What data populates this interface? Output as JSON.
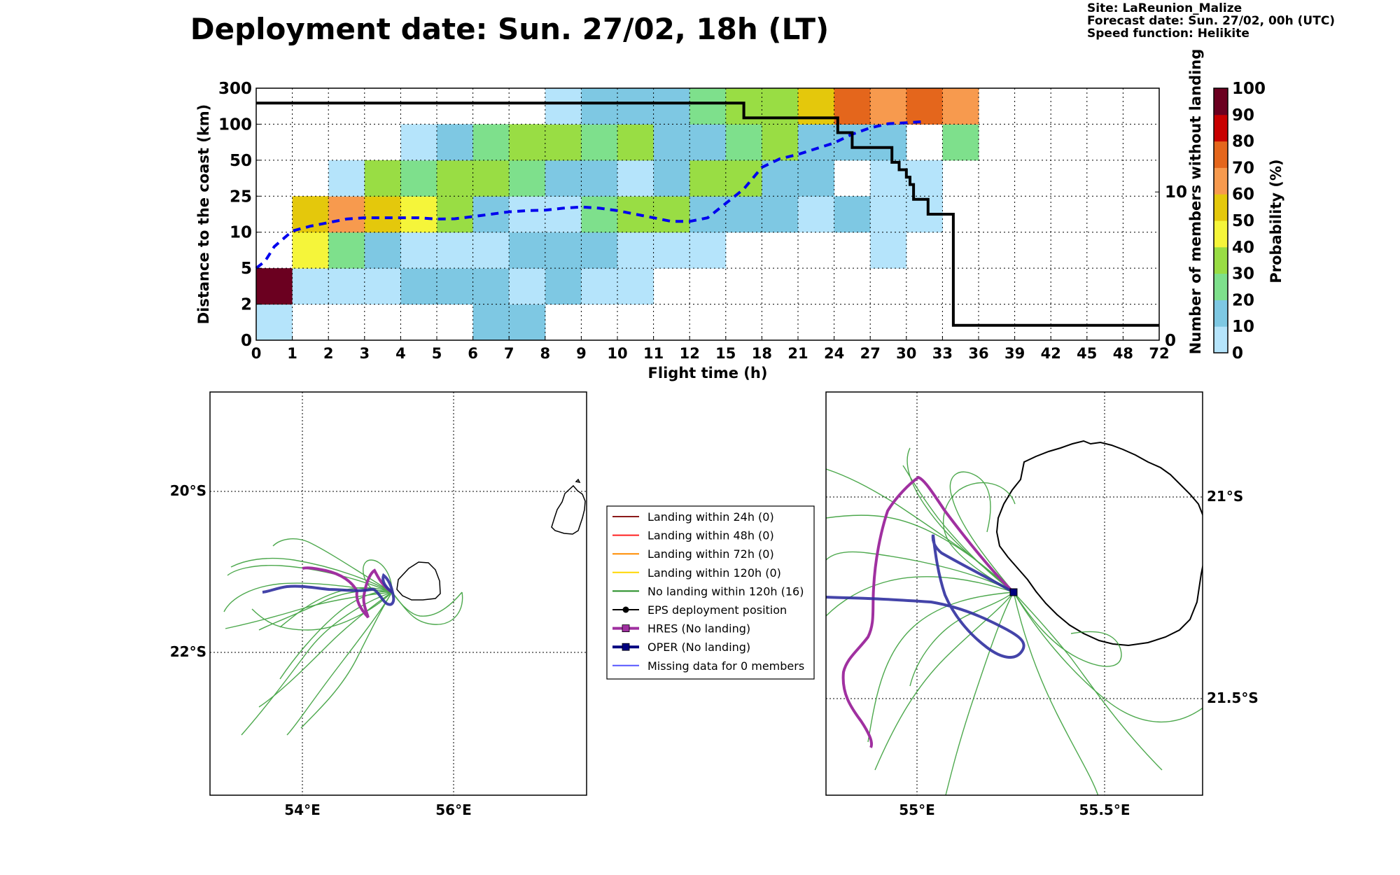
{
  "header": {
    "title": "Deployment date: Sun. 27/02, 18h (LT)",
    "info": [
      "Site: LaReunion_Malize",
      "Forecast date: Sun. 27/02, 00h (UTC)",
      "Speed function: Helikite"
    ]
  },
  "chart_data": [
    {
      "type": "heatmap",
      "xlabel": "Flight time (h)",
      "ylabel": "Distance to the coast (km)",
      "y2label": "Number of members without landing",
      "colorbar_label": "Probability (%)",
      "x_ticks": [
        "0",
        "1",
        "2",
        "3",
        "4",
        "5",
        "6",
        "7",
        "8",
        "9",
        "10",
        "11",
        "12",
        "15",
        "18",
        "21",
        "24",
        "27",
        "30",
        "33",
        "36",
        "39",
        "42",
        "45",
        "48",
        "72"
      ],
      "y_ticks": [
        "0",
        "2",
        "5",
        "10",
        "25",
        "50",
        "100",
        "300"
      ],
      "y2_ticks": [
        "0",
        "10"
      ],
      "y2_range": [
        0,
        17
      ],
      "colorbar_ticks": [
        "0",
        "10",
        "20",
        "30",
        "40",
        "50",
        "60",
        "70",
        "80",
        "90",
        "100"
      ],
      "colorbar_colors": [
        "#b5e4fb",
        "#7ec8e3",
        "#7ee08c",
        "#99dd44",
        "#f5f53a",
        "#e4c80c",
        "#f79a4e",
        "#e4661c",
        "#c80000",
        "#a00000",
        "#6b0020"
      ],
      "grid": true,
      "cells": [
        [
          0,
          0,
          0
        ],
        [
          0,
          1,
          100
        ],
        [
          1,
          1,
          0
        ],
        [
          1,
          2,
          40
        ],
        [
          1,
          3,
          50
        ],
        [
          2,
          1,
          0
        ],
        [
          2,
          2,
          20
        ],
        [
          2,
          3,
          60
        ],
        [
          2,
          4,
          0
        ],
        [
          3,
          1,
          0
        ],
        [
          3,
          2,
          10
        ],
        [
          3,
          3,
          50
        ],
        [
          3,
          4,
          30
        ],
        [
          4,
          1,
          10
        ],
        [
          4,
          2,
          0
        ],
        [
          4,
          3,
          40
        ],
        [
          4,
          4,
          20
        ],
        [
          4,
          5,
          0
        ],
        [
          5,
          1,
          10
        ],
        [
          5,
          2,
          0
        ],
        [
          5,
          3,
          30
        ],
        [
          5,
          4,
          30
        ],
        [
          5,
          5,
          10
        ],
        [
          6,
          0,
          10
        ],
        [
          6,
          1,
          10
        ],
        [
          6,
          2,
          0
        ],
        [
          6,
          3,
          10
        ],
        [
          6,
          4,
          30
        ],
        [
          6,
          5,
          20
        ],
        [
          7,
          0,
          10
        ],
        [
          7,
          1,
          0
        ],
        [
          7,
          2,
          10
        ],
        [
          7,
          3,
          0
        ],
        [
          7,
          4,
          20
        ],
        [
          7,
          5,
          30
        ],
        [
          8,
          1,
          10
        ],
        [
          8,
          2,
          10
        ],
        [
          8,
          3,
          0
        ],
        [
          8,
          4,
          10
        ],
        [
          8,
          5,
          30
        ],
        [
          8,
          6,
          0
        ],
        [
          9,
          1,
          0
        ],
        [
          9,
          2,
          10
        ],
        [
          9,
          3,
          20
        ],
        [
          9,
          4,
          10
        ],
        [
          9,
          5,
          20
        ],
        [
          9,
          6,
          10
        ],
        [
          10,
          1,
          0
        ],
        [
          10,
          2,
          0
        ],
        [
          10,
          3,
          30
        ],
        [
          10,
          4,
          0
        ],
        [
          10,
          5,
          30
        ],
        [
          10,
          6,
          10
        ],
        [
          11,
          2,
          0
        ],
        [
          11,
          3,
          30
        ],
        [
          11,
          4,
          10
        ],
        [
          11,
          5,
          10
        ],
        [
          11,
          6,
          10
        ],
        [
          12,
          2,
          0
        ],
        [
          12,
          3,
          10
        ],
        [
          12,
          4,
          30
        ],
        [
          12,
          5,
          10
        ],
        [
          12,
          6,
          20
        ],
        [
          13,
          3,
          10
        ],
        [
          13,
          4,
          30
        ],
        [
          13,
          5,
          20
        ],
        [
          13,
          6,
          30
        ],
        [
          14,
          3,
          10
        ],
        [
          14,
          4,
          10
        ],
        [
          14,
          5,
          30
        ],
        [
          14,
          6,
          30
        ],
        [
          15,
          3,
          0
        ],
        [
          15,
          4,
          10
        ],
        [
          15,
          5,
          10
        ],
        [
          15,
          6,
          50
        ],
        [
          16,
          3,
          10
        ],
        [
          16,
          5,
          10
        ],
        [
          16,
          6,
          70
        ],
        [
          17,
          2,
          0
        ],
        [
          17,
          3,
          0
        ],
        [
          17,
          4,
          0
        ],
        [
          17,
          5,
          10
        ],
        [
          17,
          6,
          60
        ],
        [
          18,
          3,
          0
        ],
        [
          18,
          4,
          0
        ],
        [
          18,
          6,
          70
        ],
        [
          19,
          5,
          20
        ],
        [
          19,
          6,
          60
        ]
      ],
      "series": [
        {
          "type": "line",
          "style": "dashed",
          "color": "#0000ee",
          "axis": "left",
          "points": [
            [
              0,
              5
            ],
            [
              0.25,
              6
            ],
            [
              0.5,
              8
            ],
            [
              1,
              10.5
            ],
            [
              1.5,
              12.5
            ],
            [
              2,
              14
            ],
            [
              2.5,
              15.5
            ],
            [
              3,
              16
            ],
            [
              3.5,
              16
            ],
            [
              4,
              16
            ],
            [
              4.5,
              16
            ],
            [
              5,
              15.5
            ],
            [
              5.5,
              15.6
            ],
            [
              6,
              16.5
            ],
            [
              6.5,
              17.5
            ],
            [
              7,
              18.5
            ],
            [
              7.5,
              19
            ],
            [
              8,
              19.2
            ],
            [
              8.5,
              20
            ],
            [
              9,
              20.5
            ],
            [
              9.5,
              20
            ],
            [
              10,
              19
            ],
            [
              10.5,
              17.5
            ],
            [
              11,
              16
            ],
            [
              11.5,
              14.5
            ],
            [
              12,
              14.5
            ],
            [
              12.5,
              16
            ],
            [
              13,
              22
            ],
            [
              13.5,
              30
            ],
            [
              14,
              45
            ],
            [
              14.5,
              52
            ],
            [
              15,
              58
            ],
            [
              15.5,
              66
            ],
            [
              16,
              74
            ],
            [
              16.5,
              86
            ],
            [
              17,
              95
            ],
            [
              17.5,
              103
            ],
            [
              18,
              108
            ],
            [
              18.5,
              115
            ]
          ]
        },
        {
          "type": "step",
          "color": "#000000",
          "axis": "right",
          "points": [
            [
              0,
              16
            ],
            [
              13.5,
              16
            ],
            [
              13.5,
              15
            ],
            [
              16.1,
              15
            ],
            [
              16.1,
              14
            ],
            [
              16.5,
              14
            ],
            [
              16.5,
              13
            ],
            [
              17.6,
              13
            ],
            [
              17.6,
              12
            ],
            [
              17.8,
              12
            ],
            [
              17.8,
              11.5
            ],
            [
              18,
              11.5
            ],
            [
              18,
              11
            ],
            [
              18.1,
              11
            ],
            [
              18.1,
              10.5
            ],
            [
              18.2,
              10.5
            ],
            [
              18.2,
              9.5
            ],
            [
              18.6,
              9.5
            ],
            [
              18.6,
              8.5
            ],
            [
              19.3,
              8.5
            ],
            [
              19.3,
              1
            ],
            [
              25,
              1
            ]
          ]
        }
      ]
    },
    {
      "type": "map",
      "lon_ticks": [
        "54°E",
        "56°E"
      ],
      "lat_ticks": [
        "20°S",
        "22°S"
      ],
      "lon_range": [
        52.75,
        57.75
      ],
      "lat_range": [
        18.8,
        23.8
      ]
    },
    {
      "type": "map",
      "lon_ticks": [
        "55°E",
        "55.5°E"
      ],
      "lat_ticks": [
        "21°S",
        "21.5°S"
      ],
      "lon_range": [
        54.77,
        55.77
      ],
      "lat_range": [
        20.755,
        21.755
      ]
    }
  ],
  "legend": {
    "entries": [
      {
        "label": "Landing within 24h (0)",
        "color": "#8b1a1a"
      },
      {
        "label": "Landing within 48h (0)",
        "color": "#ff2020"
      },
      {
        "label": "Landing within 72h (0)",
        "color": "#ff8c00"
      },
      {
        "label": "Landing within 120h (0)",
        "color": "#ffd700"
      },
      {
        "label": "No landing within 120h (16)",
        "color": "#228b22"
      },
      {
        "label": "EPS deployment position",
        "color": "#000000"
      },
      {
        "label": "HRES (No landing)",
        "color": "#a030a0"
      },
      {
        "label": "OPER (No landing)",
        "color": "#000080"
      },
      {
        "label": "Missing data for 0 members",
        "color": "#5555ff"
      }
    ]
  }
}
